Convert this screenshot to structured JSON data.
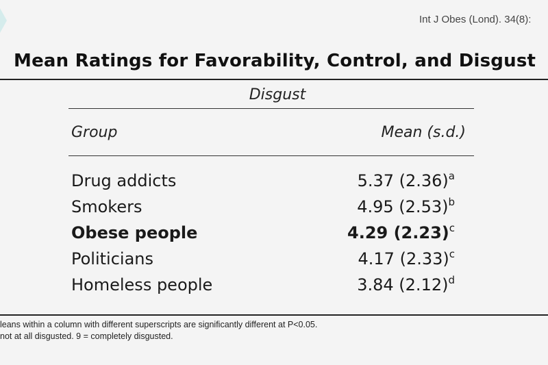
{
  "citation": "Int J Obes (Lond). 34(8):",
  "title": "Mean Ratings for Favorability, Control, and Disgust",
  "table": {
    "column_title": "Disgust",
    "headers": {
      "group": "Group",
      "mean": "Mean (s.d.)"
    },
    "rows": [
      {
        "group": "Drug addicts",
        "value": "5.37 (2.36)",
        "sup": "a"
      },
      {
        "group": "Smokers",
        "value": "4.95 (2.53)",
        "sup": "b"
      },
      {
        "group": "Obese people",
        "value": "4.29 (2.23)",
        "sup": "c"
      },
      {
        "group": "Politicians",
        "value": "4.17 (2.33)",
        "sup": "c"
      },
      {
        "group": "Homeless people",
        "value": "3.84 (2.12)",
        "sup": "d"
      }
    ]
  },
  "footnotes": {
    "line1": "leans within a column with different superscripts are significantly different at P<0.05.",
    "line2": " not at all disgusted. 9 = completely disgusted."
  },
  "colors": {
    "background": "#f4f4f4",
    "accent": "#d5ecec",
    "text": "#1a1a1a"
  }
}
